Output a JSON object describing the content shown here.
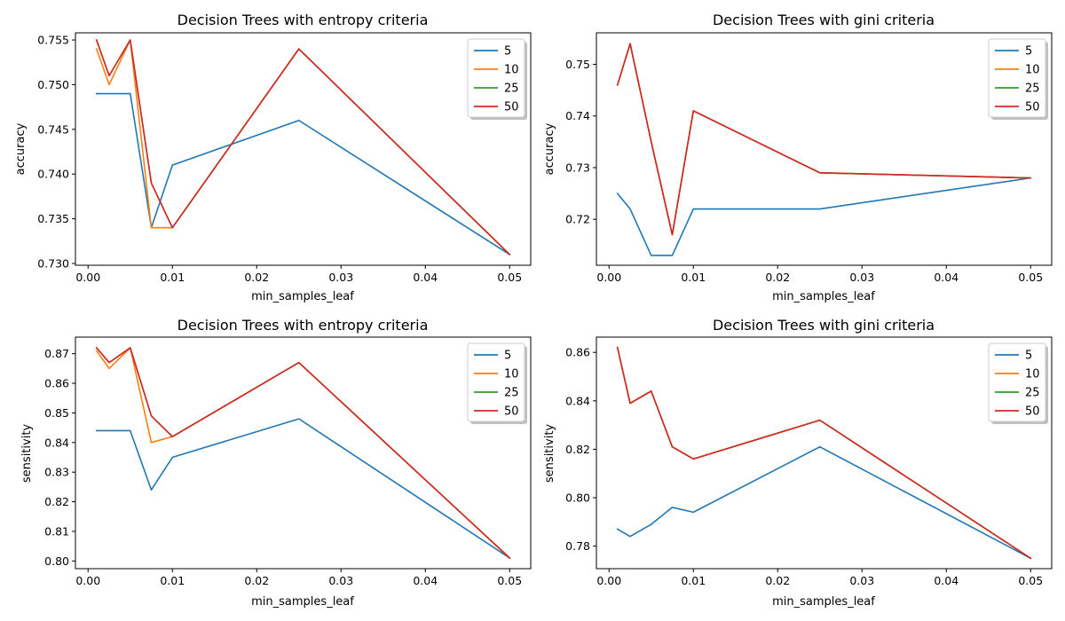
{
  "chart_data": [
    {
      "type": "line",
      "title": "Decision Trees with entropy criteria",
      "xlabel": "min_samples_leaf",
      "ylabel": "accuracy",
      "x": [
        0.001,
        0.0025,
        0.005,
        0.0075,
        0.01,
        0.025,
        0.05
      ],
      "xlim": [
        -0.0015,
        0.0525
      ],
      "ylim": [
        0.7298,
        0.7558
      ],
      "xticks": [
        0.0,
        0.01,
        0.02,
        0.03,
        0.04,
        0.05
      ],
      "xtick_labels": [
        "0.00",
        "0.01",
        "0.02",
        "0.03",
        "0.04",
        "0.05"
      ],
      "yticks": [
        0.73,
        0.735,
        0.74,
        0.745,
        0.75,
        0.755
      ],
      "ytick_labels": [
        "0.730",
        "0.735",
        "0.740",
        "0.745",
        "0.750",
        "0.755"
      ],
      "legend": "top-right",
      "grid": false,
      "series": [
        {
          "name": "5",
          "color": "#1f77b4",
          "values": [
            0.749,
            0.749,
            0.749,
            0.734,
            0.741,
            0.746,
            0.731
          ]
        },
        {
          "name": "10",
          "color": "#ff7f0e",
          "values": [
            0.754,
            0.75,
            0.755,
            0.734,
            0.734,
            0.754,
            0.731
          ]
        },
        {
          "name": "25",
          "color": "#2ca02c",
          "values": [
            0.755,
            0.751,
            0.755,
            0.739,
            0.734,
            0.754,
            0.731
          ]
        },
        {
          "name": "50",
          "color": "#d62728",
          "values": [
            0.755,
            0.751,
            0.755,
            0.739,
            0.734,
            0.754,
            0.731
          ]
        }
      ]
    },
    {
      "type": "line",
      "title": "Decision Trees with gini criteria",
      "xlabel": "min_samples_leaf",
      "ylabel": "accuracy",
      "x": [
        0.001,
        0.0025,
        0.005,
        0.0075,
        0.01,
        0.025,
        0.05
      ],
      "xlim": [
        -0.0015,
        0.0525
      ],
      "ylim": [
        0.7111,
        0.7561
      ],
      "xticks": [
        0.0,
        0.01,
        0.02,
        0.03,
        0.04,
        0.05
      ],
      "xtick_labels": [
        "0.00",
        "0.01",
        "0.02",
        "0.03",
        "0.04",
        "0.05"
      ],
      "yticks": [
        0.72,
        0.73,
        0.74,
        0.75
      ],
      "ytick_labels": [
        "0.72",
        "0.73",
        "0.74",
        "0.75"
      ],
      "legend": "top-right",
      "grid": false,
      "series": [
        {
          "name": "5",
          "color": "#1f77b4",
          "values": [
            0.725,
            0.722,
            0.713,
            0.713,
            0.722,
            0.722,
            0.728
          ]
        },
        {
          "name": "10",
          "color": "#ff7f0e",
          "values": [
            0.746,
            0.754,
            0.735,
            0.717,
            0.741,
            0.729,
            0.728
          ]
        },
        {
          "name": "25",
          "color": "#2ca02c",
          "values": [
            0.746,
            0.754,
            0.735,
            0.717,
            0.741,
            0.729,
            0.728
          ]
        },
        {
          "name": "50",
          "color": "#d62728",
          "values": [
            0.746,
            0.754,
            0.735,
            0.717,
            0.741,
            0.729,
            0.728
          ]
        }
      ]
    },
    {
      "type": "line",
      "title": "Decision Trees with entropy criteria",
      "xlabel": "min_samples_leaf",
      "ylabel": "sensitivity",
      "x": [
        0.001,
        0.0025,
        0.005,
        0.0075,
        0.01,
        0.025,
        0.05
      ],
      "xlim": [
        -0.0015,
        0.0525
      ],
      "ylim": [
        0.7974,
        0.8756
      ],
      "xticks": [
        0.0,
        0.01,
        0.02,
        0.03,
        0.04,
        0.05
      ],
      "xtick_labels": [
        "0.00",
        "0.01",
        "0.02",
        "0.03",
        "0.04",
        "0.05"
      ],
      "yticks": [
        0.8,
        0.81,
        0.82,
        0.83,
        0.84,
        0.85,
        0.86,
        0.87
      ],
      "ytick_labels": [
        "0.80",
        "0.81",
        "0.82",
        "0.83",
        "0.84",
        "0.85",
        "0.86",
        "0.87"
      ],
      "legend": "top-right",
      "grid": false,
      "series": [
        {
          "name": "5",
          "color": "#1f77b4",
          "values": [
            0.844,
            0.844,
            0.844,
            0.824,
            0.835,
            0.848,
            0.801
          ]
        },
        {
          "name": "10",
          "color": "#ff7f0e",
          "values": [
            0.871,
            0.865,
            0.872,
            0.84,
            0.842,
            0.867,
            0.801
          ]
        },
        {
          "name": "25",
          "color": "#2ca02c",
          "values": [
            0.872,
            0.867,
            0.872,
            0.849,
            0.842,
            0.867,
            0.801
          ]
        },
        {
          "name": "50",
          "color": "#d62728",
          "values": [
            0.872,
            0.867,
            0.872,
            0.849,
            0.842,
            0.867,
            0.801
          ]
        }
      ]
    },
    {
      "type": "line",
      "title": "Decision Trees with gini criteria",
      "xlabel": "min_samples_leaf",
      "ylabel": "sensitivity",
      "x": [
        0.001,
        0.0025,
        0.005,
        0.0075,
        0.01,
        0.025,
        0.05
      ],
      "xlim": [
        -0.0015,
        0.0525
      ],
      "ylim": [
        0.7707,
        0.8663
      ],
      "xticks": [
        0.0,
        0.01,
        0.02,
        0.03,
        0.04,
        0.05
      ],
      "xtick_labels": [
        "0.00",
        "0.01",
        "0.02",
        "0.03",
        "0.04",
        "0.05"
      ],
      "yticks": [
        0.78,
        0.8,
        0.82,
        0.84,
        0.86
      ],
      "ytick_labels": [
        "0.78",
        "0.80",
        "0.82",
        "0.84",
        "0.86"
      ],
      "legend": "top-right",
      "grid": false,
      "series": [
        {
          "name": "5",
          "color": "#1f77b4",
          "values": [
            0.787,
            0.784,
            0.789,
            0.796,
            0.794,
            0.821,
            0.775
          ]
        },
        {
          "name": "10",
          "color": "#ff7f0e",
          "values": [
            0.862,
            0.839,
            0.844,
            0.821,
            0.816,
            0.832,
            0.775
          ]
        },
        {
          "name": "25",
          "color": "#2ca02c",
          "values": [
            0.862,
            0.839,
            0.844,
            0.821,
            0.816,
            0.832,
            0.775
          ]
        },
        {
          "name": "50",
          "color": "#d62728",
          "values": [
            0.862,
            0.839,
            0.844,
            0.821,
            0.816,
            0.832,
            0.775
          ]
        }
      ]
    }
  ]
}
